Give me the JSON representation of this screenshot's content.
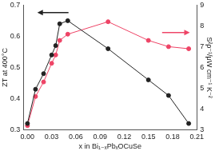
{
  "chart_data": {
    "type": "line",
    "x_label": "x in Bi₁₋ₓPbₓOCuSe",
    "y_label": "ZT at 400°C",
    "y2_label": "S²ρ⁻¹/μW cm⁻¹ K⁻²",
    "xlim": [
      -0.005,
      0.21
    ],
    "xticks": [
      {
        "value": 0,
        "label": "0.00"
      },
      0.03,
      0.06,
      0.09,
      0.12,
      0.15,
      0.18,
      0.21
    ],
    "ylim": [
      0.3,
      0.7
    ],
    "yticks": [
      0.3,
      0.4,
      0.5,
      0.6,
      0.7
    ],
    "y2lim": [
      3,
      9
    ],
    "y2ticks": [
      3,
      4,
      5,
      6,
      7,
      8,
      9
    ],
    "grid": false,
    "series": [
      {
        "name": "ZT at 400°C",
        "color": "#222222",
        "marker": "circle",
        "line_style": "solid",
        "x": [
          0,
          0.01,
          0.02,
          0.03,
          0.035,
          0.04,
          0.05,
          0.1,
          0.15,
          0.175,
          0.2
        ],
        "values": [
          0.32,
          0.43,
          0.48,
          0.54,
          0.57,
          0.64,
          0.65,
          0.56,
          0.46,
          0.41,
          0.32
        ]
      },
      {
        "name": "S²ρ⁻¹/μW cm⁻¹ K⁻²",
        "color": "#ee4466",
        "marker": "circle",
        "line_style": "solid",
        "axis": "y2",
        "x": [
          0,
          0.01,
          0.02,
          0.03,
          0.035,
          0.04,
          0.05,
          0.1,
          0.15,
          0.175,
          0.2
        ],
        "values": [
          3.2,
          4.6,
          5.3,
          6.2,
          6.6,
          7.3,
          7.6,
          8.2,
          7.3,
          7.0,
          6.9
        ]
      }
    ]
  }
}
